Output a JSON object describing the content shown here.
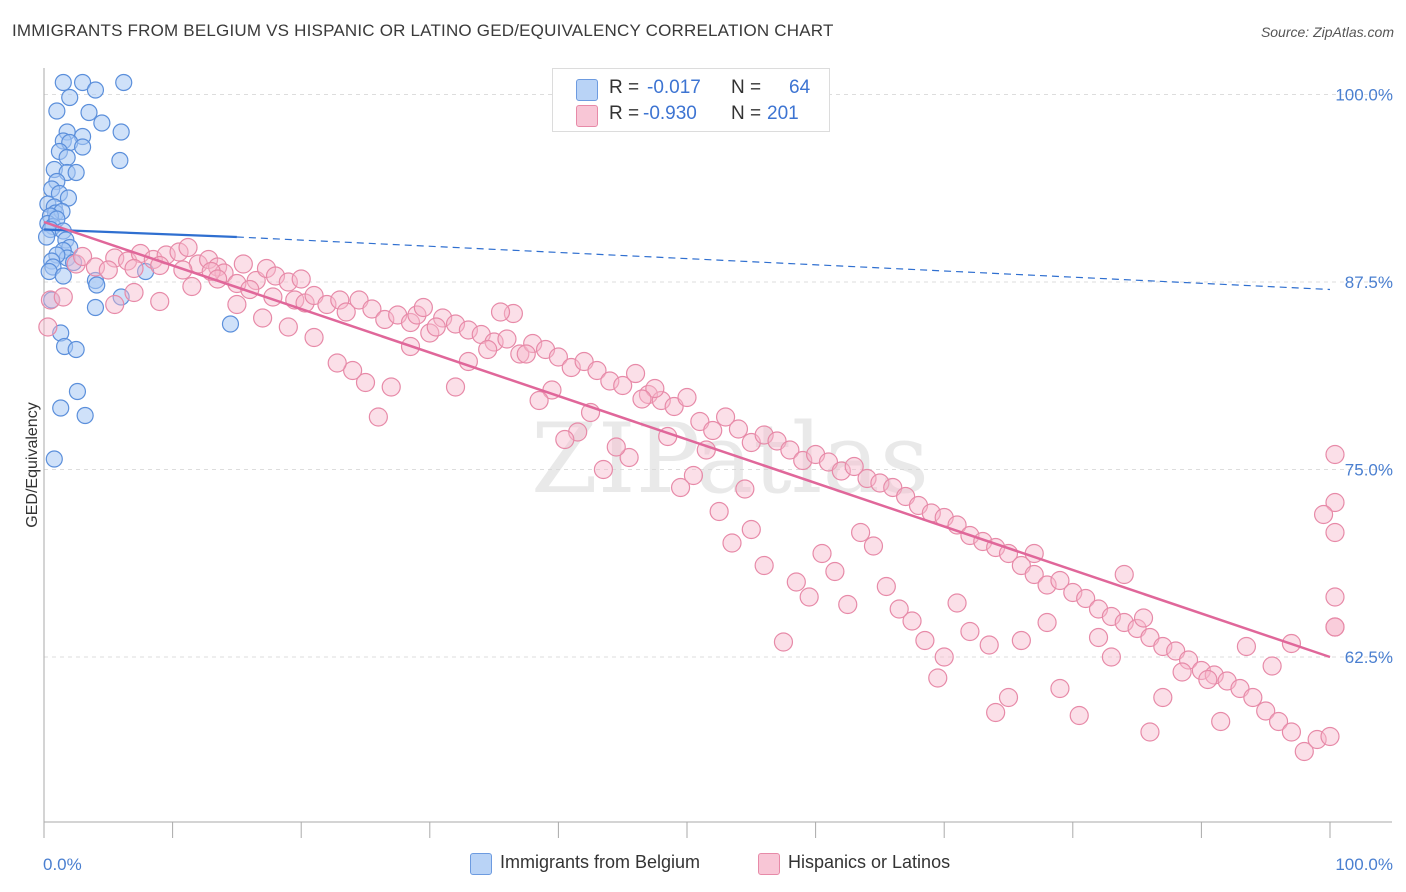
{
  "title": "IMMIGRANTS FROM BELGIUM VS HISPANIC OR LATINO GED/EQUIVALENCY CORRELATION CHART",
  "source": "Source: ZipAtlas.com",
  "watermark": "ZIPatlas",
  "legend": {
    "rows": [
      {
        "r_label": "R =",
        "r_value": "-0.017",
        "n_label": "N =",
        "n_value": "64"
      },
      {
        "r_label": "R =",
        "r_value": "-0.930",
        "n_label": "N =",
        "n_value": "201"
      }
    ]
  },
  "colors": {
    "blue_fill": "#a8c8f4",
    "blue_stroke": "#5b8fdb",
    "blue_line": "#2f6fd0",
    "pink_fill": "#f6b8cc",
    "pink_stroke": "#e78aa8",
    "pink_line": "#e0679a",
    "accent_text": "#3d74d2",
    "grid": "#dddddd"
  },
  "chart_data": {
    "type": "scatter",
    "xlabel": "",
    "ylabel": "GED/Equivalency",
    "x_tick_labels": [
      "0.0%",
      "100.0%"
    ],
    "y_tick_labels": [
      "100.0%",
      "87.5%",
      "75.0%",
      "62.5%"
    ],
    "y_ticks": [
      100.0,
      87.5,
      75.0,
      62.5
    ],
    "xlim": [
      0,
      100
    ],
    "ylim": [
      51.5,
      101.5
    ],
    "series": [
      {
        "name": "Immigrants from Belgium",
        "color": "blue",
        "trend": {
          "x0": 0,
          "y0": 91.0,
          "x1": 15,
          "y1": 90.5,
          "dashed_to_x": 100,
          "dashed_to_y": 87.0
        },
        "points": [
          [
            1.5,
            100.8
          ],
          [
            2.0,
            99.8
          ],
          [
            3.0,
            100.8
          ],
          [
            6.2,
            100.8
          ],
          [
            4.0,
            100.3
          ],
          [
            1.0,
            98.9
          ],
          [
            3.5,
            98.8
          ],
          [
            4.5,
            98.1
          ],
          [
            6.0,
            97.5
          ],
          [
            1.8,
            97.5
          ],
          [
            3.0,
            97.2
          ],
          [
            1.5,
            96.9
          ],
          [
            2.0,
            96.8
          ],
          [
            3.0,
            96.5
          ],
          [
            1.2,
            96.2
          ],
          [
            1.8,
            95.8
          ],
          [
            5.9,
            95.6
          ],
          [
            0.8,
            95.0
          ],
          [
            1.8,
            94.8
          ],
          [
            2.5,
            94.8
          ],
          [
            1.0,
            94.2
          ],
          [
            0.6,
            93.7
          ],
          [
            1.2,
            93.4
          ],
          [
            1.9,
            93.1
          ],
          [
            0.3,
            92.7
          ],
          [
            0.8,
            92.5
          ],
          [
            0.9,
            92.1
          ],
          [
            1.4,
            92.2
          ],
          [
            0.5,
            91.9
          ],
          [
            0.3,
            91.4
          ],
          [
            0.7,
            91.2
          ],
          [
            1.0,
            91.7
          ],
          [
            0.5,
            91.0
          ],
          [
            1.5,
            90.9
          ],
          [
            0.2,
            90.5
          ],
          [
            1.7,
            90.3
          ],
          [
            2.0,
            89.8
          ],
          [
            1.5,
            89.6
          ],
          [
            1.8,
            89.1
          ],
          [
            1.0,
            89.3
          ],
          [
            0.6,
            88.9
          ],
          [
            0.7,
            88.5
          ],
          [
            2.3,
            88.8
          ],
          [
            0.4,
            88.2
          ],
          [
            7.9,
            88.2
          ],
          [
            1.5,
            87.9
          ],
          [
            4.0,
            87.6
          ],
          [
            4.1,
            87.3
          ],
          [
            6.0,
            86.5
          ],
          [
            0.6,
            86.3
          ],
          [
            4.0,
            85.8
          ],
          [
            1.3,
            84.1
          ],
          [
            14.5,
            84.7
          ],
          [
            1.6,
            83.2
          ],
          [
            2.5,
            83.0
          ],
          [
            2.6,
            80.2
          ],
          [
            1.3,
            79.1
          ],
          [
            3.2,
            78.6
          ],
          [
            0.8,
            75.7
          ]
        ]
      },
      {
        "name": "Hispanics or Latinos",
        "color": "pink",
        "trend": {
          "x0": 0,
          "y0": 91.5,
          "x1": 100,
          "y1": 62.5
        },
        "points": [
          [
            0.3,
            84.5
          ],
          [
            0.5,
            86.3
          ],
          [
            1.5,
            86.5
          ],
          [
            2.5,
            88.7
          ],
          [
            3.0,
            89.2
          ],
          [
            4.0,
            88.5
          ],
          [
            5.5,
            89.1
          ],
          [
            6.5,
            88.9
          ],
          [
            7.5,
            89.4
          ],
          [
            8.5,
            89.0
          ],
          [
            9.5,
            89.3
          ],
          [
            10.5,
            89.5
          ],
          [
            11.2,
            89.8
          ],
          [
            12.0,
            88.7
          ],
          [
            12.8,
            89.0
          ],
          [
            13.5,
            88.5
          ],
          [
            14.0,
            88.1
          ],
          [
            15.5,
            88.7
          ],
          [
            16.5,
            87.6
          ],
          [
            17.3,
            88.4
          ],
          [
            18.0,
            87.9
          ],
          [
            19.0,
            87.5
          ],
          [
            20.0,
            87.7
          ],
          [
            5.0,
            88.3
          ],
          [
            7.0,
            88.4
          ],
          [
            9.0,
            88.6
          ],
          [
            10.8,
            88.3
          ],
          [
            13.0,
            88.2
          ],
          [
            15.0,
            87.4
          ],
          [
            16.0,
            87.0
          ],
          [
            17.8,
            86.5
          ],
          [
            19.5,
            86.3
          ],
          [
            20.3,
            86.1
          ],
          [
            21.0,
            86.6
          ],
          [
            22.0,
            86.0
          ],
          [
            23.0,
            86.3
          ],
          [
            23.5,
            85.5
          ],
          [
            24.5,
            86.3
          ],
          [
            25.5,
            85.7
          ],
          [
            26.5,
            85.0
          ],
          [
            27.5,
            85.3
          ],
          [
            28.5,
            84.8
          ],
          [
            29.0,
            85.3
          ],
          [
            30.0,
            84.1
          ],
          [
            31.0,
            85.1
          ],
          [
            32.0,
            84.7
          ],
          [
            33.0,
            84.3
          ],
          [
            34.0,
            84.0
          ],
          [
            35.0,
            83.5
          ],
          [
            36.0,
            83.7
          ],
          [
            37.0,
            82.7
          ],
          [
            38.0,
            83.4
          ],
          [
            39.0,
            83.0
          ],
          [
            40.0,
            82.5
          ],
          [
            41.0,
            81.8
          ],
          [
            42.0,
            82.2
          ],
          [
            43.0,
            81.6
          ],
          [
            44.0,
            80.9
          ],
          [
            45.0,
            80.6
          ],
          [
            46.0,
            81.4
          ],
          [
            47.0,
            80.0
          ],
          [
            48.0,
            79.6
          ],
          [
            49.0,
            79.2
          ],
          [
            50.0,
            79.8
          ],
          [
            51.0,
            78.2
          ],
          [
            52.0,
            77.6
          ],
          [
            53.0,
            78.5
          ],
          [
            54.0,
            77.7
          ],
          [
            55.0,
            76.8
          ],
          [
            56.0,
            77.3
          ],
          [
            57.0,
            76.9
          ],
          [
            58.0,
            76.3
          ],
          [
            59.0,
            75.6
          ],
          [
            60.0,
            76.0
          ],
          [
            61.0,
            75.5
          ],
          [
            62.0,
            74.9
          ],
          [
            63.0,
            75.2
          ],
          [
            64.0,
            74.4
          ],
          [
            65.0,
            74.1
          ],
          [
            66.0,
            73.8
          ],
          [
            67.0,
            73.2
          ],
          [
            68.0,
            72.6
          ],
          [
            69.0,
            72.1
          ],
          [
            70.0,
            71.8
          ],
          [
            71.0,
            71.3
          ],
          [
            72.0,
            70.6
          ],
          [
            73.0,
            70.2
          ],
          [
            74.0,
            69.8
          ],
          [
            75.0,
            69.4
          ],
          [
            76.0,
            68.6
          ],
          [
            77.0,
            68.0
          ],
          [
            78.0,
            67.3
          ],
          [
            79.0,
            67.6
          ],
          [
            80.0,
            66.8
          ],
          [
            81.0,
            66.4
          ],
          [
            82.0,
            65.7
          ],
          [
            83.0,
            65.2
          ],
          [
            84.0,
            64.8
          ],
          [
            85.0,
            64.4
          ],
          [
            86.0,
            63.8
          ],
          [
            87.0,
            63.2
          ],
          [
            88.0,
            62.9
          ],
          [
            89.0,
            62.3
          ],
          [
            90.0,
            61.6
          ],
          [
            91.0,
            61.3
          ],
          [
            92.0,
            60.9
          ],
          [
            93.0,
            60.4
          ],
          [
            94.0,
            59.8
          ],
          [
            95.0,
            58.9
          ],
          [
            96.0,
            58.2
          ],
          [
            97.0,
            57.5
          ],
          [
            98.0,
            56.2
          ],
          [
            99.0,
            57.0
          ],
          [
            100.0,
            57.2
          ],
          [
            101.0,
            64.5
          ],
          [
            101.5,
            66.5
          ],
          [
            102.0,
            64.5
          ],
          [
            102.5,
            72.8
          ],
          [
            103.0,
            76.0
          ],
          [
            101.8,
            70.8
          ],
          [
            99.5,
            72.0
          ],
          [
            97.0,
            63.4
          ],
          [
            95.5,
            61.9
          ],
          [
            93.5,
            63.2
          ],
          [
            91.5,
            58.2
          ],
          [
            90.5,
            61.0
          ],
          [
            88.5,
            61.5
          ],
          [
            87.0,
            59.8
          ],
          [
            86.0,
            57.5
          ],
          [
            85.5,
            65.1
          ],
          [
            84.0,
            68.0
          ],
          [
            83.0,
            62.5
          ],
          [
            82.0,
            63.8
          ],
          [
            80.5,
            58.6
          ],
          [
            79.0,
            60.4
          ],
          [
            78.0,
            64.8
          ],
          [
            77.0,
            69.4
          ],
          [
            76.0,
            63.6
          ],
          [
            75.0,
            59.8
          ],
          [
            74.0,
            58.8
          ],
          [
            73.5,
            63.3
          ],
          [
            72.0,
            64.2
          ],
          [
            71.0,
            66.1
          ],
          [
            70.0,
            62.5
          ],
          [
            69.5,
            61.1
          ],
          [
            68.5,
            63.6
          ],
          [
            67.5,
            64.9
          ],
          [
            66.5,
            65.7
          ],
          [
            65.5,
            67.2
          ],
          [
            64.5,
            69.9
          ],
          [
            63.5,
            70.8
          ],
          [
            62.5,
            66.0
          ],
          [
            61.5,
            68.2
          ],
          [
            60.5,
            69.4
          ],
          [
            59.5,
            66.5
          ],
          [
            58.5,
            67.5
          ],
          [
            57.5,
            63.5
          ],
          [
            56.0,
            68.6
          ],
          [
            55.0,
            71.0
          ],
          [
            54.5,
            73.7
          ],
          [
            53.5,
            70.1
          ],
          [
            52.5,
            72.2
          ],
          [
            51.5,
            76.3
          ],
          [
            50.5,
            74.6
          ],
          [
            49.5,
            73.8
          ],
          [
            48.5,
            77.2
          ],
          [
            47.5,
            80.4
          ],
          [
            46.5,
            79.7
          ],
          [
            45.5,
            75.8
          ],
          [
            44.5,
            76.5
          ],
          [
            43.5,
            75.0
          ],
          [
            42.5,
            78.8
          ],
          [
            41.5,
            77.5
          ],
          [
            40.5,
            77.0
          ],
          [
            39.5,
            80.3
          ],
          [
            38.5,
            79.6
          ],
          [
            37.5,
            82.7
          ],
          [
            36.5,
            85.4
          ],
          [
            35.5,
            85.5
          ],
          [
            34.5,
            83.0
          ],
          [
            33.0,
            82.2
          ],
          [
            32.0,
            80.5
          ],
          [
            30.5,
            84.5
          ],
          [
            29.5,
            85.8
          ],
          [
            28.5,
            83.2
          ],
          [
            27.0,
            80.5
          ],
          [
            26.0,
            78.5
          ],
          [
            25.0,
            80.8
          ],
          [
            24.0,
            81.6
          ],
          [
            22.8,
            82.1
          ],
          [
            21.0,
            83.8
          ],
          [
            19.0,
            84.5
          ],
          [
            17.0,
            85.1
          ],
          [
            15.0,
            86.0
          ],
          [
            13.5,
            87.7
          ],
          [
            11.5,
            87.2
          ],
          [
            9.0,
            86.2
          ],
          [
            7.0,
            86.8
          ],
          [
            5.5,
            86.0
          ]
        ]
      }
    ]
  },
  "bottom_legend": [
    "Immigrants from Belgium",
    "Hispanics or Latinos"
  ]
}
